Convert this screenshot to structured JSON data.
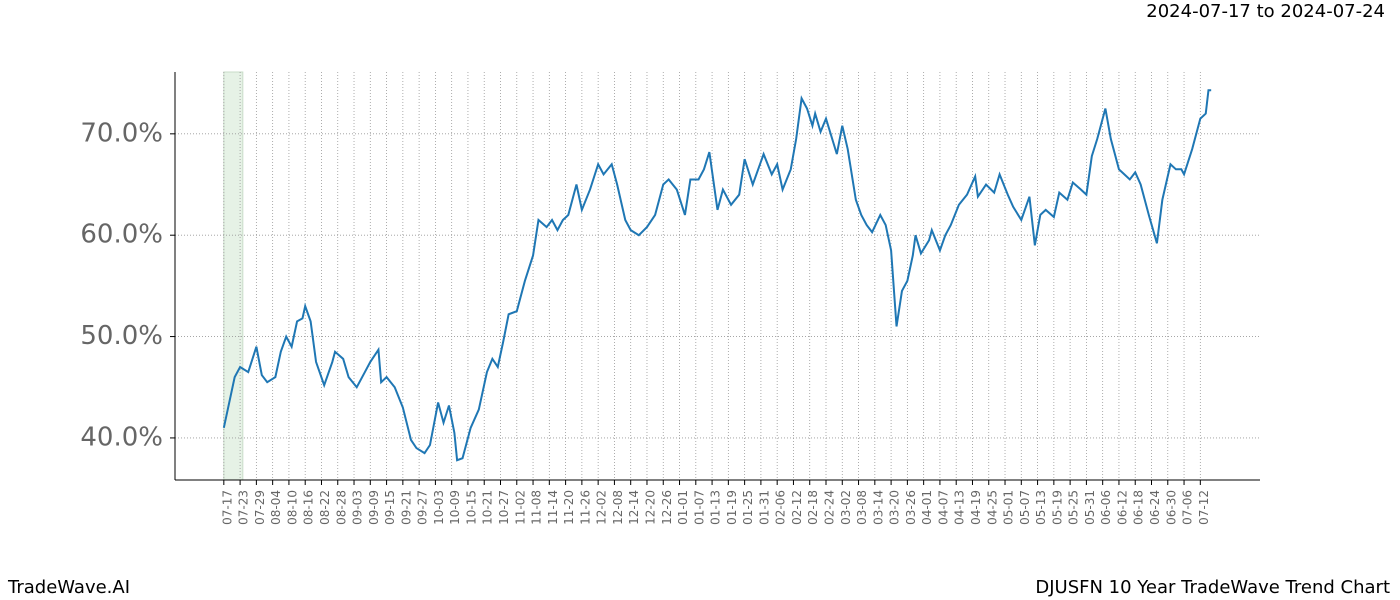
{
  "chart_data": {
    "type": "line",
    "date_range": "2024-07-17 to 2024-07-24",
    "brand": "TradeWave.AI",
    "title": "DJUSFN 10 Year TradeWave Trend Chart",
    "xlim": [
      -18,
      382
    ],
    "ylim": [
      35.85,
      76.1
    ],
    "shade_x": [
      0,
      7
    ],
    "shade_color": "#e6f2e6",
    "grid": true,
    "yticks": [
      {
        "value": 40,
        "label": "40.0%"
      },
      {
        "value": 50,
        "label": "50.0%"
      },
      {
        "value": 60,
        "label": "60.0%"
      },
      {
        "value": 70,
        "label": "70.0%"
      }
    ],
    "xticks": [
      {
        "value": 0,
        "label": "07-17"
      },
      {
        "value": 6,
        "label": "07-23"
      },
      {
        "value": 12,
        "label": "07-29"
      },
      {
        "value": 18,
        "label": "08-04"
      },
      {
        "value": 24,
        "label": "08-10"
      },
      {
        "value": 30,
        "label": "08-16"
      },
      {
        "value": 36,
        "label": "08-22"
      },
      {
        "value": 42,
        "label": "08-28"
      },
      {
        "value": 48,
        "label": "09-03"
      },
      {
        "value": 54,
        "label": "09-09"
      },
      {
        "value": 60,
        "label": "09-15"
      },
      {
        "value": 66,
        "label": "09-21"
      },
      {
        "value": 72,
        "label": "09-27"
      },
      {
        "value": 78,
        "label": "10-03"
      },
      {
        "value": 84,
        "label": "10-09"
      },
      {
        "value": 90,
        "label": "10-15"
      },
      {
        "value": 96,
        "label": "10-21"
      },
      {
        "value": 102,
        "label": "10-27"
      },
      {
        "value": 108,
        "label": "11-02"
      },
      {
        "value": 114,
        "label": "11-08"
      },
      {
        "value": 120,
        "label": "11-14"
      },
      {
        "value": 126,
        "label": "11-20"
      },
      {
        "value": 132,
        "label": "11-26"
      },
      {
        "value": 138,
        "label": "12-02"
      },
      {
        "value": 144,
        "label": "12-08"
      },
      {
        "value": 150,
        "label": "12-14"
      },
      {
        "value": 156,
        "label": "12-20"
      },
      {
        "value": 162,
        "label": "12-26"
      },
      {
        "value": 168,
        "label": "01-01"
      },
      {
        "value": 174,
        "label": "01-07"
      },
      {
        "value": 180,
        "label": "01-13"
      },
      {
        "value": 186,
        "label": "01-19"
      },
      {
        "value": 192,
        "label": "01-25"
      },
      {
        "value": 198,
        "label": "01-31"
      },
      {
        "value": 204,
        "label": "02-06"
      },
      {
        "value": 210,
        "label": "02-12"
      },
      {
        "value": 216,
        "label": "02-18"
      },
      {
        "value": 222,
        "label": "02-24"
      },
      {
        "value": 228,
        "label": "03-02"
      },
      {
        "value": 234,
        "label": "03-08"
      },
      {
        "value": 240,
        "label": "03-14"
      },
      {
        "value": 246,
        "label": "03-20"
      },
      {
        "value": 252,
        "label": "03-26"
      },
      {
        "value": 258,
        "label": "04-01"
      },
      {
        "value": 264,
        "label": "04-07"
      },
      {
        "value": 270,
        "label": "04-13"
      },
      {
        "value": 276,
        "label": "04-19"
      },
      {
        "value": 282,
        "label": "04-25"
      },
      {
        "value": 288,
        "label": "05-01"
      },
      {
        "value": 294,
        "label": "05-07"
      },
      {
        "value": 300,
        "label": "05-13"
      },
      {
        "value": 306,
        "label": "05-19"
      },
      {
        "value": 312,
        "label": "05-25"
      },
      {
        "value": 318,
        "label": "05-31"
      },
      {
        "value": 324,
        "label": "06-06"
      },
      {
        "value": 330,
        "label": "06-12"
      },
      {
        "value": 336,
        "label": "06-18"
      },
      {
        "value": 342,
        "label": "06-24"
      },
      {
        "value": 348,
        "label": "06-30"
      },
      {
        "value": 354,
        "label": "07-06"
      },
      {
        "value": 360,
        "label": "07-12"
      }
    ],
    "series": [
      {
        "color": "#1f77b4",
        "x": [
          0,
          4,
          6,
          9,
          12,
          14,
          16,
          19,
          21,
          23,
          25,
          27,
          29,
          30,
          32,
          34,
          37,
          40,
          41,
          44,
          46,
          49,
          52,
          54,
          57,
          58,
          60,
          63,
          66,
          69,
          71,
          74,
          76,
          79,
          81,
          83,
          85,
          86,
          88,
          91,
          94,
          97,
          99,
          101,
          103,
          105,
          108,
          111,
          114,
          116,
          119,
          121,
          123,
          125,
          127,
          130,
          132,
          135,
          138,
          140,
          143,
          145,
          148,
          150,
          153,
          156,
          159,
          162,
          164,
          167,
          170,
          172,
          175,
          177,
          179,
          182,
          184,
          187,
          190,
          192,
          195,
          197,
          199,
          202,
          204,
          206,
          209,
          211,
          213,
          215,
          217,
          218,
          220,
          222,
          226,
          228,
          230,
          233,
          235,
          237,
          239,
          242,
          244,
          246,
          248,
          250,
          252,
          254,
          255,
          257,
          260,
          261,
          264,
          266,
          268,
          271,
          274,
          277,
          278,
          281,
          284,
          286,
          289,
          291,
          294,
          297,
          299,
          301,
          303,
          306,
          308,
          311,
          313,
          316,
          318,
          320,
          322,
          325,
          327,
          330,
          332,
          334,
          336,
          338,
          341,
          344,
          346,
          349,
          351,
          353,
          354,
          357,
          360,
          362,
          363,
          364
        ],
        "values": [
          41.0,
          46.0,
          47.0,
          46.5,
          49.0,
          46.2,
          45.5,
          46.0,
          48.5,
          50.0,
          49.0,
          51.5,
          51.8,
          53.0,
          51.5,
          47.5,
          45.2,
          47.5,
          48.5,
          47.8,
          46.0,
          45.0,
          46.5,
          47.5,
          48.7,
          45.5,
          46.0,
          45.0,
          43.0,
          39.8,
          39.0,
          38.5,
          39.3,
          43.5,
          41.5,
          43.2,
          40.5,
          37.8,
          38.0,
          41.0,
          42.8,
          46.5,
          47.8,
          47.0,
          49.5,
          52.2,
          52.5,
          55.5,
          58.0,
          61.5,
          60.8,
          61.5,
          60.5,
          61.5,
          62.0,
          65.0,
          62.5,
          64.5,
          67.0,
          66.0,
          67.0,
          65.0,
          61.5,
          60.5,
          60.0,
          60.8,
          62.0,
          65.0,
          65.5,
          64.5,
          62.0,
          65.5,
          65.5,
          66.5,
          68.2,
          62.5,
          64.5,
          63.0,
          64.0,
          67.5,
          65.0,
          66.5,
          68.0,
          66.0,
          67.0,
          64.5,
          66.5,
          69.5,
          73.5,
          72.5,
          70.8,
          72.0,
          70.2,
          71.5,
          68.0,
          70.8,
          68.5,
          63.5,
          62.0,
          61.0,
          60.3,
          62.0,
          61.0,
          58.5,
          51.0,
          54.5,
          55.5,
          58.0,
          60.0,
          58.2,
          59.5,
          60.5,
          58.5,
          60.0,
          61.0,
          63.0,
          64.0,
          65.8,
          63.8,
          65.0,
          64.2,
          66.0,
          64.0,
          62.8,
          61.5,
          63.8,
          59.0,
          62.0,
          62.5,
          61.8,
          64.2,
          63.5,
          65.2,
          64.5,
          64.0,
          67.8,
          69.5,
          72.5,
          69.5,
          66.5,
          66.0,
          65.5,
          66.2,
          65.0,
          62.0,
          59.2,
          63.5,
          67.0,
          66.5,
          66.5,
          66.0,
          68.5,
          71.5,
          72.0,
          74.3,
          74.3
        ]
      }
    ]
  }
}
